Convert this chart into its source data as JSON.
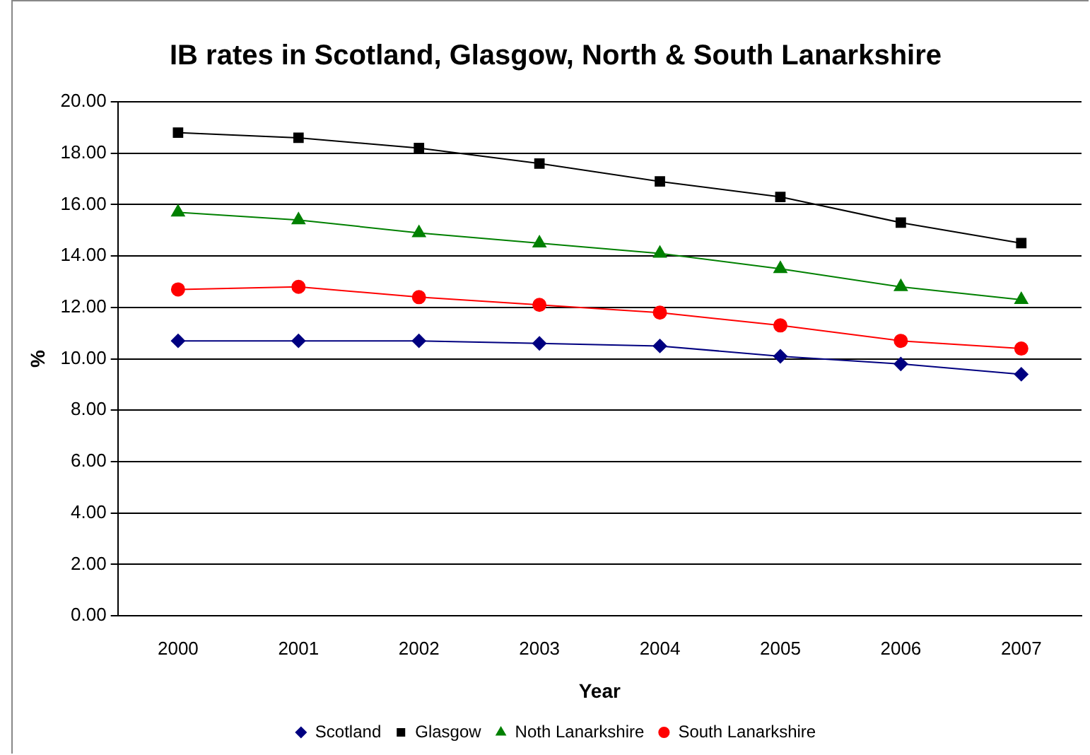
{
  "chart_data": {
    "type": "line",
    "title": "IB rates in Scotland, Glasgow, North & South Lanarkshire",
    "xlabel": "Year",
    "ylabel": "%",
    "categories": [
      "2000",
      "2001",
      "2002",
      "2003",
      "2004",
      "2005",
      "2006",
      "2007"
    ],
    "series": [
      {
        "name": "Scotland",
        "color": "#000080",
        "marker": "diamond",
        "values": [
          10.7,
          10.7,
          10.7,
          10.6,
          10.5,
          10.1,
          9.8,
          9.4
        ]
      },
      {
        "name": "Glasgow",
        "color": "#000000",
        "marker": "square",
        "values": [
          18.8,
          18.6,
          18.2,
          17.6,
          16.9,
          16.3,
          15.3,
          14.5
        ]
      },
      {
        "name": "Noth Lanarkshire",
        "color": "#008000",
        "marker": "triangle",
        "values": [
          15.7,
          15.4,
          14.9,
          14.5,
          14.1,
          13.5,
          12.8,
          12.3
        ]
      },
      {
        "name": "South Lanarkshire",
        "color": "#ff0000",
        "marker": "circle",
        "values": [
          12.7,
          12.8,
          12.4,
          12.1,
          11.8,
          11.3,
          10.7,
          10.4
        ]
      }
    ],
    "ylim": [
      0,
      20
    ],
    "yticks": [
      {
        "value": 0,
        "label": "0.00"
      },
      {
        "value": 2,
        "label": "2.00"
      },
      {
        "value": 4,
        "label": "4.00"
      },
      {
        "value": 6,
        "label": "6.00"
      },
      {
        "value": 8,
        "label": "8.00"
      },
      {
        "value": 10,
        "label": "10.00"
      },
      {
        "value": 12,
        "label": "12.00"
      },
      {
        "value": 14,
        "label": "14.00"
      },
      {
        "value": 16,
        "label": "16.00"
      },
      {
        "value": 18,
        "label": "18.00"
      },
      {
        "value": 20,
        "label": "20.00"
      }
    ],
    "grid": "y",
    "legend": "bottom"
  }
}
